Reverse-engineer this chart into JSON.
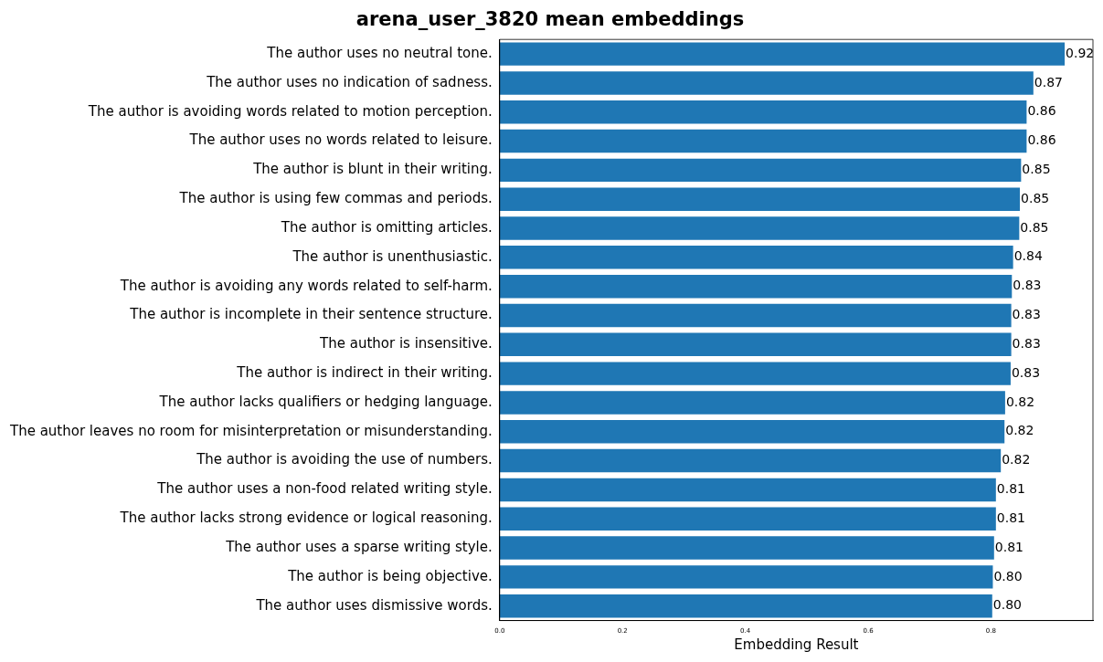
{
  "chart_data": {
    "type": "bar",
    "orientation": "horizontal",
    "title": "arena_user_3820 mean embeddings",
    "xlabel": "Embedding Result",
    "categories": [
      "The author uses no neutral tone.",
      "The author uses no indication of sadness.",
      "The author is avoiding words related to motion perception.",
      "The author uses no words related to leisure.",
      "The author is blunt in their writing.",
      "The author is using few commas and periods.",
      "The author is omitting articles.",
      "The author is unenthusiastic.",
      "The author is avoiding any words related to self-harm.",
      "The author is incomplete in their sentence structure.",
      "The author is insensitive.",
      "The author is indirect in their writing.",
      "The author lacks qualifiers or hedging language.",
      "The author leaves no room for misinterpretation or misunderstanding.",
      "The author is avoiding the use of numbers.",
      "The author uses a non-food related writing style.",
      "The author lacks strong evidence or logical reasoning.",
      "The author uses a sparse writing style.",
      "The author is being objective.",
      "The author uses dismissive words."
    ],
    "values": [
      0.92,
      0.869,
      0.858,
      0.858,
      0.849,
      0.847,
      0.846,
      0.836,
      0.834,
      0.833,
      0.833,
      0.832,
      0.823,
      0.822,
      0.816,
      0.808,
      0.808,
      0.805,
      0.803,
      0.802
    ],
    "value_labels": [
      "0.92",
      "0.87",
      "0.86",
      "0.86",
      "0.85",
      "0.85",
      "0.85",
      "0.84",
      "0.83",
      "0.83",
      "0.83",
      "0.83",
      "0.82",
      "0.82",
      "0.82",
      "0.81",
      "0.81",
      "0.81",
      "0.80",
      "0.80"
    ],
    "color": "#1f77b4",
    "xlim": [
      0,
      0.966
    ],
    "xticks": [
      {
        "value": 0,
        "label": "0.0"
      },
      {
        "value": 0.2,
        "label": "0.2"
      },
      {
        "value": 0.4,
        "label": "0.4"
      },
      {
        "value": 0.6,
        "label": "0.6"
      },
      {
        "value": 0.8,
        "label": "0.8"
      }
    ],
    "grid": false,
    "legend": false
  }
}
